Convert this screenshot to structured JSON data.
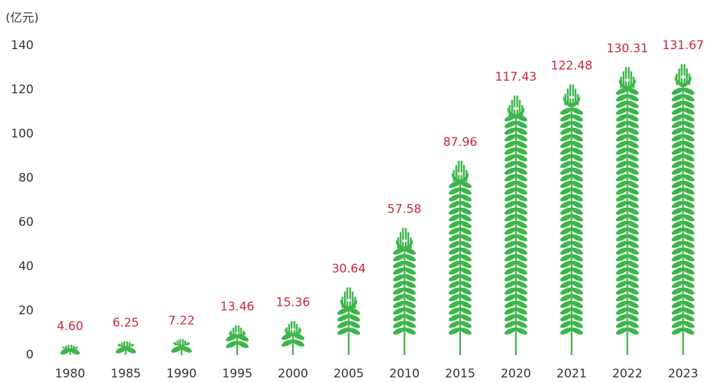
{
  "chart_data": {
    "type": "pictogram-bar",
    "y_unit": "(亿元)",
    "categories": [
      "1980",
      "1985",
      "1990",
      "1995",
      "2000",
      "2005",
      "2010",
      "2015",
      "2020",
      "2021",
      "2022",
      "2023"
    ],
    "values": [
      4.6,
      6.25,
      7.22,
      13.46,
      15.36,
      30.64,
      57.58,
      87.96,
      117.43,
      122.48,
      130.31,
      131.67
    ],
    "value_labels": [
      "4.60",
      "6.25",
      "7.22",
      "13.46",
      "15.36",
      "30.64",
      "57.58",
      "87.96",
      "117.43",
      "122.48",
      "130.31",
      "131.67"
    ],
    "color": "#3db54a",
    "label_color": "#c8283c",
    "ylim": [
      0,
      140
    ],
    "yticks": [
      0,
      20,
      40,
      60,
      80,
      100,
      120,
      140
    ],
    "grid": false
  }
}
